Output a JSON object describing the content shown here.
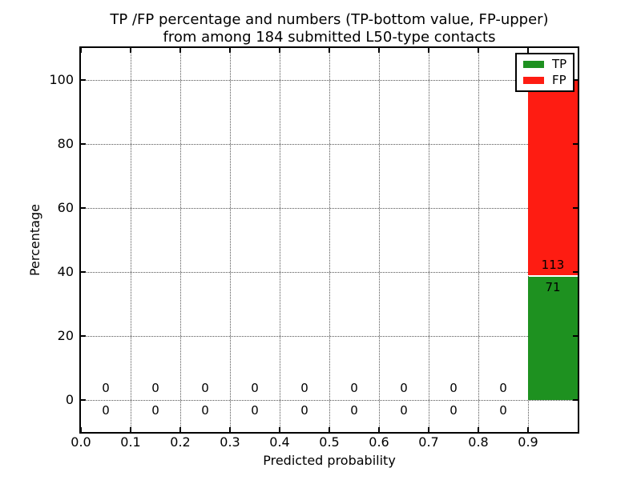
{
  "chart_data": {
    "type": "bar",
    "stacked": true,
    "title_lines": [
      "TP /FP percentage and numbers (TP-bottom value, FP-upper)",
      "from among 184 submitted L50-type contacts"
    ],
    "xlabel": "Predicted probability",
    "ylabel": "Percentage",
    "xlim": [
      0.0,
      1.0
    ],
    "ylim": [
      -10,
      110
    ],
    "grid": "dotted",
    "legend_position": "upper right",
    "total_submitted": 184,
    "bin_width": 0.1,
    "x_tick_labels": [
      "0.0",
      "0.1",
      "0.2",
      "0.3",
      "0.4",
      "0.5",
      "0.6",
      "0.7",
      "0.8",
      "0.9"
    ],
    "x_tick_values": [
      0,
      0.1,
      0.2,
      0.3,
      0.4,
      0.5,
      0.6,
      0.7,
      0.8,
      0.9
    ],
    "y_tick_labels": [
      "0",
      "20",
      "40",
      "60",
      "80",
      "100"
    ],
    "y_tick_values": [
      0,
      20,
      40,
      60,
      80,
      100
    ],
    "bin_centers": [
      0.05,
      0.15,
      0.25,
      0.35,
      0.45,
      0.55,
      0.65,
      0.75,
      0.85,
      0.95
    ],
    "series": [
      {
        "name": "TP",
        "color": "#1e9120",
        "counts": [
          0,
          0,
          0,
          0,
          0,
          0,
          0,
          0,
          0,
          71
        ],
        "percents": [
          0,
          0,
          0,
          0,
          0,
          0,
          0,
          0,
          0,
          38.6
        ]
      },
      {
        "name": "FP",
        "color": "#fe1c12",
        "counts": [
          0,
          0,
          0,
          0,
          0,
          0,
          0,
          0,
          0,
          113
        ],
        "percents": [
          0,
          0,
          0,
          0,
          0,
          0,
          0,
          0,
          0,
          61.4
        ]
      }
    ],
    "legend": {
      "entries": [
        {
          "label": "TP",
          "color": "#1e9120"
        },
        {
          "label": "FP",
          "color": "#fe1c12"
        }
      ]
    }
  }
}
